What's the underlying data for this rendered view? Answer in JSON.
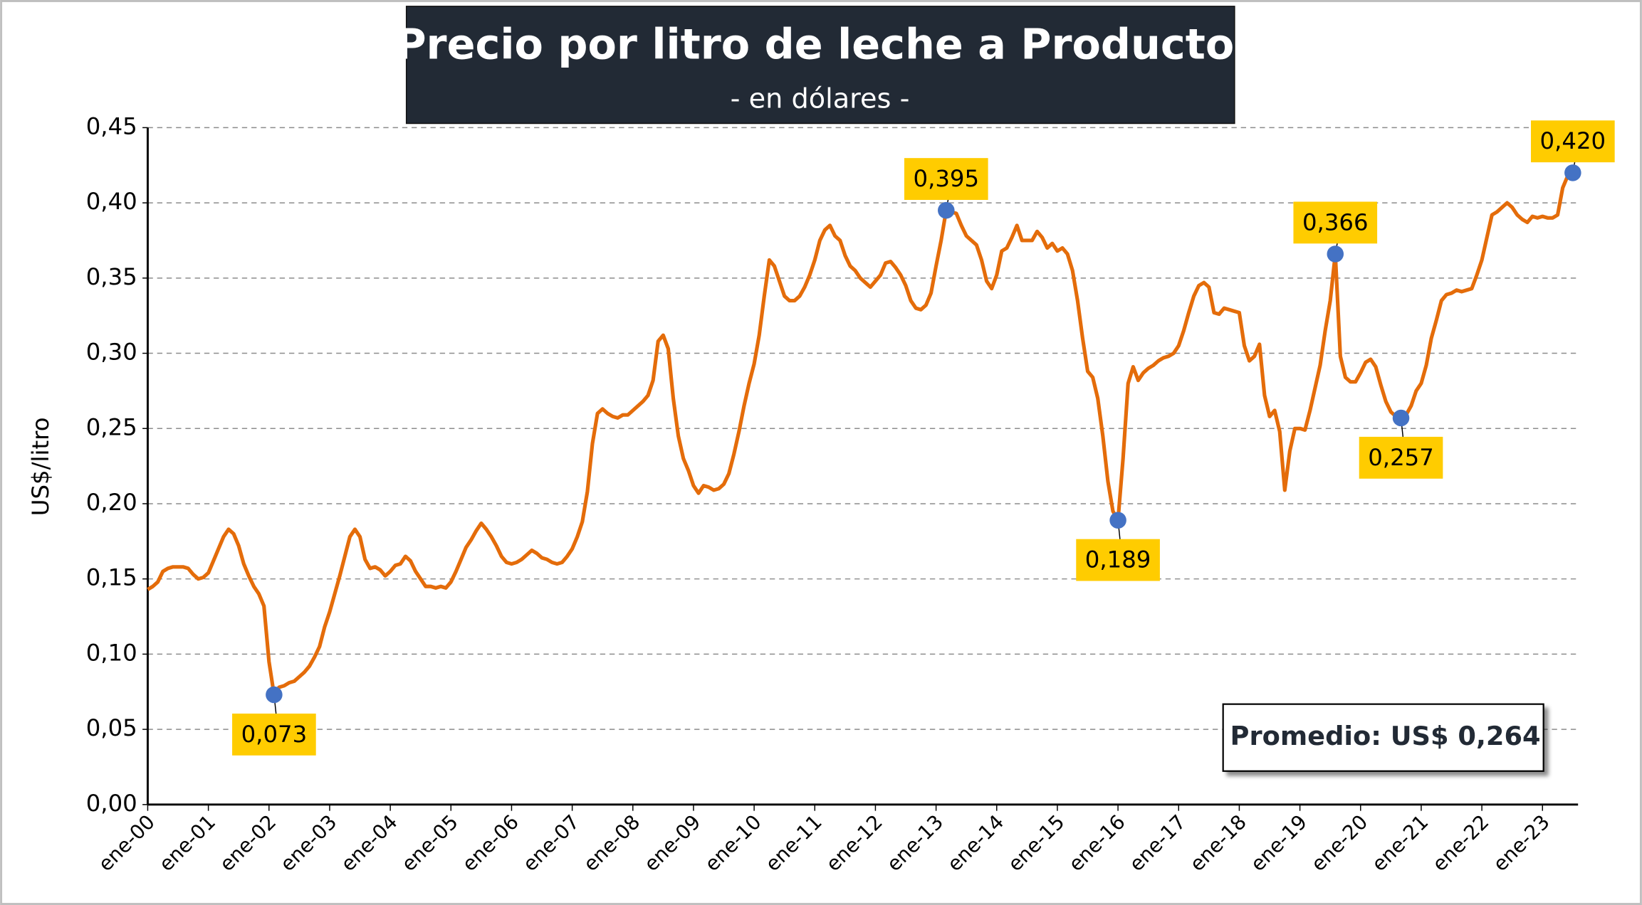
{
  "chart_data": {
    "type": "line",
    "title": "Precio por litro de leche a Productor",
    "subtitle": "- en dólares -",
    "ylabel": "US$/litro",
    "annotation": "Promedio: US$ 0,264",
    "color": "#e46c0a",
    "marker_color": "#4472c4",
    "label_color": "#ffcc00",
    "grid": true,
    "ylim": [
      0,
      0.45
    ],
    "yticks": [
      {
        "value": 0,
        "label": "0,00"
      },
      {
        "value": 0.05,
        "label": "0,05"
      },
      {
        "value": 0.1,
        "label": "0,10"
      },
      {
        "value": 0.15,
        "label": "0,15"
      },
      {
        "value": 0.2,
        "label": "0,20"
      },
      {
        "value": 0.25,
        "label": "0,25"
      },
      {
        "value": 0.3,
        "label": "0,30"
      },
      {
        "value": 0.35,
        "label": "0,35"
      },
      {
        "value": 0.4,
        "label": "0,40"
      },
      {
        "value": 0.45,
        "label": "0,45"
      }
    ],
    "categories": [
      "ene-00",
      null,
      null,
      null,
      null,
      null,
      null,
      null,
      null,
      null,
      null,
      null,
      "ene-01",
      null,
      null,
      null,
      null,
      null,
      null,
      null,
      null,
      null,
      null,
      null,
      "ene-02",
      null,
      null,
      null,
      null,
      null,
      null,
      null,
      null,
      null,
      null,
      null,
      "ene-03",
      null,
      null,
      null,
      null,
      null,
      null,
      null,
      null,
      null,
      null,
      null,
      "ene-04",
      null,
      null,
      null,
      null,
      null,
      null,
      null,
      null,
      null,
      null,
      null,
      "ene-05",
      null,
      null,
      null,
      null,
      null,
      null,
      null,
      null,
      null,
      null,
      null,
      "ene-06",
      null,
      null,
      null,
      null,
      null,
      null,
      null,
      null,
      null,
      null,
      null,
      "ene-07",
      null,
      null,
      null,
      null,
      null,
      null,
      null,
      null,
      null,
      null,
      null,
      "ene-08",
      null,
      null,
      null,
      null,
      null,
      null,
      null,
      null,
      null,
      null,
      null,
      "ene-09",
      null,
      null,
      null,
      null,
      null,
      null,
      null,
      null,
      null,
      null,
      null,
      "ene-10",
      null,
      null,
      null,
      null,
      null,
      null,
      null,
      null,
      null,
      null,
      null,
      "ene-11",
      null,
      null,
      null,
      null,
      null,
      null,
      null,
      null,
      null,
      null,
      null,
      "ene-12",
      null,
      null,
      null,
      null,
      null,
      null,
      null,
      null,
      null,
      null,
      null,
      "ene-13",
      null,
      null,
      null,
      null,
      null,
      null,
      null,
      null,
      null,
      null,
      null,
      "ene-14",
      null,
      null,
      null,
      null,
      null,
      null,
      null,
      null,
      null,
      null,
      null,
      "ene-15",
      null,
      null,
      null,
      null,
      null,
      null,
      null,
      null,
      null,
      null,
      null,
      "ene-16",
      null,
      null,
      null,
      null,
      null,
      null,
      null,
      null,
      null,
      null,
      null,
      "ene-17",
      null,
      null,
      null,
      null,
      null,
      null,
      null,
      null,
      null,
      null,
      null,
      "ene-18",
      null,
      null,
      null,
      null,
      null,
      null,
      null,
      null,
      null,
      null,
      null,
      "ene-19",
      null,
      null,
      null,
      null,
      null,
      null,
      null,
      null,
      null,
      null,
      null,
      "ene-20",
      null,
      null,
      null,
      null,
      null,
      null,
      null,
      null,
      null,
      null,
      null,
      "ene-21",
      null,
      null,
      null,
      null,
      null,
      null,
      null,
      null,
      null,
      null,
      null,
      "ene-22",
      null,
      null,
      null,
      null,
      null,
      null,
      null,
      null,
      null,
      null,
      null,
      "ene-23",
      null,
      null,
      null,
      null,
      null,
      null
    ],
    "values": [
      0.143,
      0.145,
      0.148,
      0.155,
      0.157,
      0.158,
      0.158,
      0.158,
      0.157,
      0.153,
      0.15,
      0.151,
      0.154,
      0.162,
      0.17,
      0.178,
      0.183,
      0.18,
      0.172,
      0.16,
      0.152,
      0.145,
      0.14,
      0.132,
      0.095,
      0.073,
      0.078,
      0.079,
      0.081,
      0.082,
      0.085,
      0.088,
      0.092,
      0.098,
      0.105,
      0.118,
      0.128,
      0.14,
      0.152,
      0.165,
      0.178,
      0.183,
      0.178,
      0.163,
      0.157,
      0.158,
      0.156,
      0.152,
      0.155,
      0.159,
      0.16,
      0.165,
      0.162,
      0.155,
      0.15,
      0.145,
      0.145,
      0.144,
      0.145,
      0.144,
      0.148,
      0.155,
      0.163,
      0.171,
      0.176,
      0.182,
      0.187,
      0.183,
      0.178,
      0.172,
      0.165,
      0.161,
      0.16,
      0.161,
      0.163,
      0.166,
      0.169,
      0.167,
      0.164,
      0.163,
      0.161,
      0.16,
      0.161,
      0.165,
      0.17,
      0.178,
      0.188,
      0.208,
      0.24,
      0.26,
      0.263,
      0.26,
      0.258,
      0.257,
      0.259,
      0.259,
      0.262,
      0.265,
      0.268,
      0.272,
      0.282,
      0.308,
      0.312,
      0.303,
      0.27,
      0.245,
      0.23,
      0.222,
      0.212,
      0.207,
      0.212,
      0.211,
      0.209,
      0.21,
      0.213,
      0.22,
      0.233,
      0.248,
      0.265,
      0.28,
      0.293,
      0.312,
      0.338,
      0.362,
      0.358,
      0.348,
      0.338,
      0.335,
      0.335,
      0.338,
      0.344,
      0.352,
      0.362,
      0.375,
      0.382,
      0.385,
      0.378,
      0.375,
      0.365,
      0.358,
      0.355,
      0.35,
      0.347,
      0.344,
      0.348,
      0.352,
      0.36,
      0.361,
      0.357,
      0.352,
      0.345,
      0.335,
      0.33,
      0.329,
      0.332,
      0.34,
      0.358,
      0.375,
      0.395,
      0.394,
      0.393,
      0.385,
      0.378,
      0.375,
      0.372,
      0.362,
      0.348,
      0.343,
      0.352,
      0.368,
      0.37,
      0.377,
      0.385,
      0.375,
      0.375,
      0.375,
      0.381,
      0.377,
      0.37,
      0.373,
      0.368,
      0.37,
      0.366,
      0.355,
      0.335,
      0.31,
      0.288,
      0.284,
      0.27,
      0.245,
      0.215,
      0.195,
      0.189,
      0.23,
      0.28,
      0.291,
      0.282,
      0.287,
      0.29,
      0.292,
      0.295,
      0.297,
      0.298,
      0.3,
      0.305,
      0.315,
      0.327,
      0.338,
      0.345,
      0.347,
      0.344,
      0.327,
      0.326,
      0.33,
      0.329,
      0.328,
      0.327,
      0.305,
      0.295,
      0.298,
      0.306,
      0.272,
      0.258,
      0.262,
      0.248,
      0.209,
      0.235,
      0.25,
      0.25,
      0.249,
      0.262,
      0.277,
      0.292,
      0.315,
      0.335,
      0.366,
      0.298,
      0.284,
      0.281,
      0.281,
      0.287,
      0.294,
      0.296,
      0.291,
      0.279,
      0.268,
      0.261,
      0.258,
      0.257,
      0.259,
      0.265,
      0.275,
      0.28,
      0.292,
      0.31,
      0.322,
      0.335,
      0.339,
      0.34,
      0.342,
      0.341,
      0.342,
      0.343,
      0.352,
      0.362,
      0.377,
      0.392,
      0.394,
      0.397,
      0.4,
      0.397,
      0.392,
      0.389,
      0.387,
      0.391,
      0.39,
      0.391,
      0.39,
      0.39,
      0.392,
      0.41,
      0.418,
      0.42
    ],
    "value_labels": [
      null,
      null,
      null,
      null,
      null,
      null,
      null,
      null,
      null,
      null,
      null,
      null,
      null,
      null,
      null,
      null,
      null,
      null,
      null,
      null,
      null,
      null,
      null,
      null,
      null,
      "0,073",
      null,
      null,
      null,
      null,
      null,
      null,
      null,
      null,
      null,
      null,
      null,
      null,
      null,
      null,
      null,
      null,
      null,
      null,
      null,
      null,
      null,
      null,
      null,
      null,
      null,
      null,
      null,
      null,
      null,
      null,
      null,
      null,
      null,
      null,
      null,
      null,
      null,
      null,
      null,
      null,
      null,
      null,
      null,
      null,
      null,
      null,
      null,
      null,
      null,
      null,
      null,
      null,
      null,
      null,
      null,
      null,
      null,
      null,
      null,
      null,
      null,
      null,
      null,
      null,
      null,
      null,
      null,
      null,
      null,
      null,
      null,
      null,
      null,
      null,
      null,
      null,
      null,
      null,
      null,
      null,
      null,
      null,
      null,
      null,
      null,
      null,
      null,
      null,
      null,
      null,
      null,
      null,
      null,
      null,
      null,
      null,
      null,
      null,
      null,
      null,
      null,
      null,
      null,
      null,
      null,
      null,
      null,
      null,
      null,
      null,
      null,
      null,
      null,
      null,
      null,
      null,
      null,
      null,
      null,
      null,
      null,
      null,
      null,
      null,
      null,
      null,
      null,
      null,
      null,
      null,
      null,
      null,
      "0,395",
      null,
      null,
      null,
      null,
      null,
      null,
      null,
      null,
      null,
      null,
      null,
      null,
      null,
      null,
      null,
      null,
      null,
      null,
      null,
      null,
      null,
      null,
      null,
      null,
      null,
      null,
      null,
      null,
      null,
      null,
      null,
      null,
      null,
      "0,189",
      null,
      null,
      null,
      null,
      null,
      null,
      null,
      null,
      null,
      null,
      null,
      null,
      null,
      null,
      null,
      null,
      null,
      null,
      null,
      null,
      null,
      null,
      null,
      null,
      null,
      null,
      null,
      null,
      null,
      null,
      null,
      null,
      null,
      null,
      null,
      null,
      null,
      null,
      null,
      null,
      null,
      null,
      "0,366",
      null,
      null,
      null,
      null,
      null,
      null,
      null,
      null,
      null,
      null,
      null,
      null,
      "0,257",
      null,
      null,
      null,
      null,
      null,
      null,
      null,
      null,
      null,
      null,
      null,
      null,
      null,
      null,
      null,
      null,
      null,
      null,
      null,
      null,
      null,
      null,
      null,
      null,
      null,
      null,
      null,
      null,
      null,
      null,
      null,
      null,
      null,
      "0,420"
    ]
  }
}
